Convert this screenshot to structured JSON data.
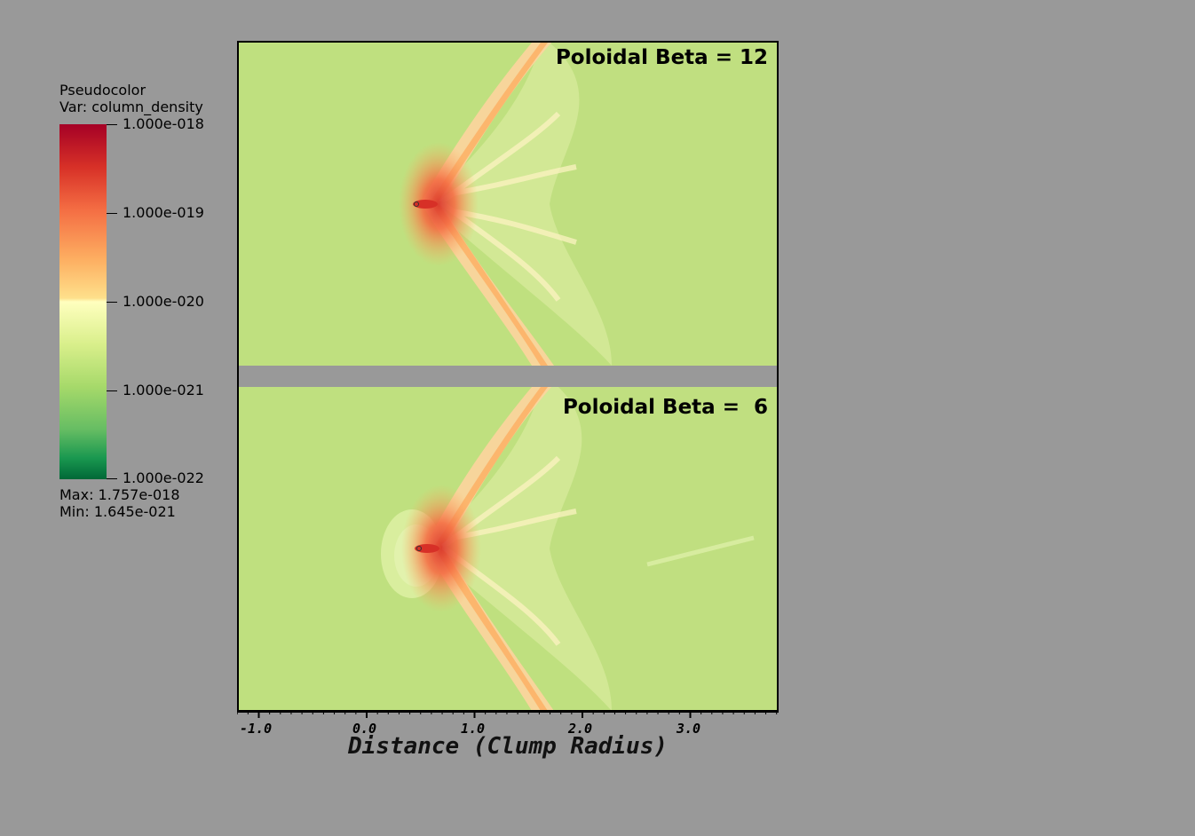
{
  "legend": {
    "title_line1": "Pseudocolor",
    "title_line2": "Var: column_density",
    "ticks": [
      "1.000e-018",
      "1.000e-019",
      "1.000e-020",
      "1.000e-021",
      "1.000e-022"
    ],
    "max_text": "Max:  1.757e-018",
    "min_text": "Min:  1.645e-021",
    "colors": [
      "#a50026",
      "#f46d43",
      "#ffffbf",
      "#a6d96a",
      "#006837"
    ]
  },
  "panels": [
    {
      "label": "Poloidal Beta = 12"
    },
    {
      "label": "Poloidal Beta =  6"
    }
  ],
  "x_axis": {
    "title": "Distance (Clump Radius)",
    "tick_labels": [
      "-1.0",
      "0.0",
      "1.0",
      "2.0",
      "3.0"
    ]
  }
}
